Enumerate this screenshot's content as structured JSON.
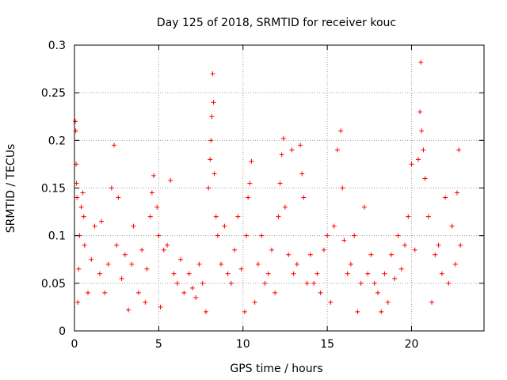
{
  "chart_data": {
    "type": "scatter",
    "title": "Day 125 of 2018, SRMTID for receiver kouc",
    "xlabel": "GPS time / hours",
    "ylabel": "SRMTID / TECUs",
    "xlim": [
      0,
      24.3
    ],
    "ylim": [
      0,
      0.3
    ],
    "xticks": [
      0,
      5,
      10,
      15,
      20
    ],
    "yticks": [
      0,
      0.05,
      0.1,
      0.15,
      0.2,
      0.25,
      0.3
    ],
    "xtick_labels": [
      "0",
      "5",
      "10",
      "15",
      "20"
    ],
    "ytick_labels": [
      "0",
      "0.05",
      "0.1",
      "0.15",
      "0.2",
      "0.25",
      "0.3"
    ],
    "grid": true,
    "marker": "plus",
    "color": "#ff0000",
    "series": [
      {
        "name": "SRMTID",
        "points": [
          [
            0.05,
            0.22
          ],
          [
            0.08,
            0.21
          ],
          [
            0.1,
            0.175
          ],
          [
            0.12,
            0.155
          ],
          [
            0.15,
            0.14
          ],
          [
            0.2,
            0.03
          ],
          [
            0.25,
            0.065
          ],
          [
            0.3,
            0.1
          ],
          [
            0.4,
            0.13
          ],
          [
            0.5,
            0.145
          ],
          [
            0.55,
            0.12
          ],
          [
            0.6,
            0.09
          ],
          [
            0.8,
            0.04
          ],
          [
            1.0,
            0.075
          ],
          [
            1.2,
            0.11
          ],
          [
            1.5,
            0.06
          ],
          [
            1.6,
            0.115
          ],
          [
            1.8,
            0.04
          ],
          [
            2.0,
            0.07
          ],
          [
            2.2,
            0.15
          ],
          [
            2.35,
            0.195
          ],
          [
            2.5,
            0.09
          ],
          [
            2.6,
            0.14
          ],
          [
            2.8,
            0.055
          ],
          [
            3.0,
            0.08
          ],
          [
            3.2,
            0.022
          ],
          [
            3.4,
            0.07
          ],
          [
            3.5,
            0.11
          ],
          [
            3.8,
            0.04
          ],
          [
            4.0,
            0.085
          ],
          [
            4.2,
            0.03
          ],
          [
            4.3,
            0.065
          ],
          [
            4.5,
            0.12
          ],
          [
            4.6,
            0.145
          ],
          [
            4.7,
            0.163
          ],
          [
            4.9,
            0.13
          ],
          [
            5.0,
            0.1
          ],
          [
            5.1,
            0.025
          ],
          [
            5.3,
            0.085
          ],
          [
            5.5,
            0.09
          ],
          [
            5.7,
            0.158
          ],
          [
            5.9,
            0.06
          ],
          [
            6.1,
            0.05
          ],
          [
            6.3,
            0.075
          ],
          [
            6.5,
            0.04
          ],
          [
            6.8,
            0.06
          ],
          [
            7.0,
            0.045
          ],
          [
            7.2,
            0.035
          ],
          [
            7.4,
            0.07
          ],
          [
            7.6,
            0.05
          ],
          [
            7.8,
            0.02
          ],
          [
            7.95,
            0.15
          ],
          [
            8.05,
            0.18
          ],
          [
            8.1,
            0.2
          ],
          [
            8.15,
            0.225
          ],
          [
            8.2,
            0.27
          ],
          [
            8.25,
            0.24
          ],
          [
            8.3,
            0.165
          ],
          [
            8.4,
            0.12
          ],
          [
            8.5,
            0.1
          ],
          [
            8.7,
            0.07
          ],
          [
            8.9,
            0.11
          ],
          [
            9.1,
            0.06
          ],
          [
            9.3,
            0.05
          ],
          [
            9.5,
            0.085
          ],
          [
            9.7,
            0.12
          ],
          [
            9.9,
            0.065
          ],
          [
            10.1,
            0.02
          ],
          [
            10.2,
            0.1
          ],
          [
            10.3,
            0.14
          ],
          [
            10.4,
            0.155
          ],
          [
            10.5,
            0.178
          ],
          [
            10.7,
            0.03
          ],
          [
            10.9,
            0.07
          ],
          [
            11.1,
            0.1
          ],
          [
            11.3,
            0.05
          ],
          [
            11.5,
            0.06
          ],
          [
            11.7,
            0.085
          ],
          [
            11.9,
            0.04
          ],
          [
            12.1,
            0.12
          ],
          [
            12.2,
            0.155
          ],
          [
            12.3,
            0.185
          ],
          [
            12.4,
            0.202
          ],
          [
            12.5,
            0.13
          ],
          [
            12.7,
            0.08
          ],
          [
            12.9,
            0.19
          ],
          [
            13.0,
            0.06
          ],
          [
            13.2,
            0.07
          ],
          [
            13.4,
            0.195
          ],
          [
            13.5,
            0.165
          ],
          [
            13.6,
            0.14
          ],
          [
            13.8,
            0.05
          ],
          [
            14.0,
            0.08
          ],
          [
            14.2,
            0.05
          ],
          [
            14.4,
            0.06
          ],
          [
            14.6,
            0.04
          ],
          [
            14.8,
            0.085
          ],
          [
            15.0,
            0.1
          ],
          [
            15.2,
            0.03
          ],
          [
            15.4,
            0.11
          ],
          [
            15.6,
            0.19
          ],
          [
            15.8,
            0.21
          ],
          [
            15.9,
            0.15
          ],
          [
            16.0,
            0.095
          ],
          [
            16.2,
            0.06
          ],
          [
            16.4,
            0.07
          ],
          [
            16.6,
            0.1
          ],
          [
            16.8,
            0.02
          ],
          [
            17.0,
            0.05
          ],
          [
            17.2,
            0.13
          ],
          [
            17.4,
            0.06
          ],
          [
            17.6,
            0.08
          ],
          [
            17.8,
            0.05
          ],
          [
            18.0,
            0.04
          ],
          [
            18.2,
            0.02
          ],
          [
            18.4,
            0.06
          ],
          [
            18.6,
            0.03
          ],
          [
            18.8,
            0.08
          ],
          [
            19.0,
            0.055
          ],
          [
            19.2,
            0.1
          ],
          [
            19.4,
            0.065
          ],
          [
            19.6,
            0.09
          ],
          [
            19.8,
            0.12
          ],
          [
            20.0,
            0.175
          ],
          [
            20.2,
            0.085
          ],
          [
            20.4,
            0.18
          ],
          [
            20.5,
            0.23
          ],
          [
            20.55,
            0.282
          ],
          [
            20.6,
            0.21
          ],
          [
            20.7,
            0.19
          ],
          [
            20.8,
            0.16
          ],
          [
            21.0,
            0.12
          ],
          [
            21.2,
            0.03
          ],
          [
            21.4,
            0.08
          ],
          [
            21.6,
            0.09
          ],
          [
            21.8,
            0.06
          ],
          [
            22.0,
            0.14
          ],
          [
            22.2,
            0.05
          ],
          [
            22.4,
            0.11
          ],
          [
            22.6,
            0.07
          ],
          [
            22.7,
            0.145
          ],
          [
            22.8,
            0.19
          ],
          [
            22.9,
            0.09
          ]
        ]
      }
    ]
  }
}
